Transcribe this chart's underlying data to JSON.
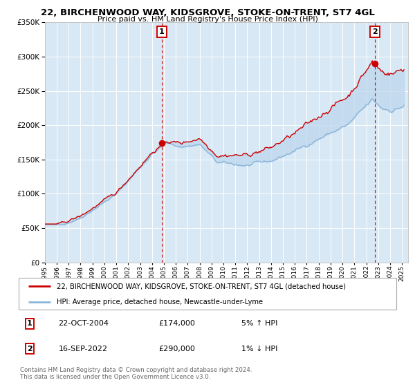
{
  "title": "22, BIRCHENWOOD WAY, KIDSGROVE, STOKE-ON-TRENT, ST7 4GL",
  "subtitle": "Price paid vs. HM Land Registry's House Price Index (HPI)",
  "ylim": [
    0,
    350000
  ],
  "yticks": [
    0,
    50000,
    100000,
    150000,
    200000,
    250000,
    300000,
    350000
  ],
  "bg_color": "#d8e8f5",
  "grid_color": "#ffffff",
  "red_line_color": "#cc0000",
  "blue_line_color": "#89b4d9",
  "fill_color": "#c0d8ee",
  "dashed_color": "#cc0000",
  "marker_color": "#cc0000",
  "p1_t": 2004.81,
  "p1_price": 174000,
  "p2_t": 2022.71,
  "p2_price": 290000,
  "legend_red": "22, BIRCHENWOOD WAY, KIDSGROVE, STOKE-ON-TRENT, ST7 4GL (detached house)",
  "legend_blue": "HPI: Average price, detached house, Newcastle-under-Lyme",
  "note1_date": "22-OCT-2004",
  "note1_price": "£174,000",
  "note1_pct": "5% ↑ HPI",
  "note2_date": "16-SEP-2022",
  "note2_price": "£290,000",
  "note2_pct": "1% ↓ HPI",
  "footer": "Contains HM Land Registry data © Crown copyright and database right 2024.\nThis data is licensed under the Open Government Licence v3.0."
}
